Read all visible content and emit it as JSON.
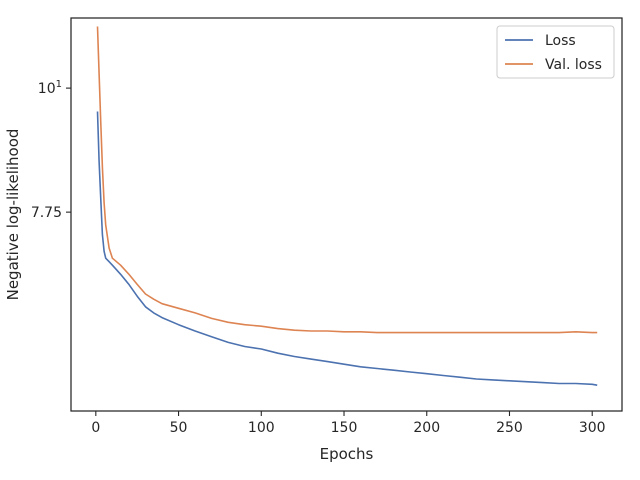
{
  "chart_data": {
    "type": "line",
    "title": "",
    "xlabel": "Epochs",
    "ylabel": "Negative log-likelihood",
    "yscale": "log",
    "xlim": [
      -15,
      318
    ],
    "ylim": [
      5.15,
      11.55
    ],
    "xticks": [
      0,
      50,
      100,
      150,
      200,
      250,
      300
    ],
    "xtick_labels": [
      "0",
      "50",
      "100",
      "150",
      "200",
      "250",
      "300"
    ],
    "yticks": [
      7.75,
      10
    ],
    "ytick_labels": [
      "7.75",
      "10"
    ],
    "ytick_superscript": [
      "",
      "1"
    ],
    "grid": false,
    "legend_position": "top-right",
    "series": [
      {
        "name": "Loss",
        "color": "#4c72b0",
        "x": [
          1,
          2,
          3,
          4,
          5,
          6,
          8,
          10,
          15,
          20,
          25,
          30,
          35,
          40,
          50,
          60,
          70,
          80,
          90,
          100,
          110,
          120,
          130,
          140,
          150,
          160,
          170,
          180,
          190,
          200,
          210,
          220,
          230,
          240,
          250,
          260,
          270,
          280,
          290,
          300,
          303
        ],
        "y": [
          9.53,
          8.6,
          7.95,
          7.4,
          7.15,
          7.05,
          7.0,
          6.95,
          6.82,
          6.68,
          6.52,
          6.38,
          6.3,
          6.24,
          6.15,
          6.07,
          6.0,
          5.93,
          5.88,
          5.85,
          5.8,
          5.76,
          5.73,
          5.7,
          5.67,
          5.64,
          5.62,
          5.6,
          5.58,
          5.56,
          5.54,
          5.52,
          5.5,
          5.49,
          5.48,
          5.47,
          5.46,
          5.45,
          5.45,
          5.44,
          5.43
        ]
      },
      {
        "name": "Val. loss",
        "color": "#dd8452",
        "x": [
          1,
          2,
          3,
          4,
          5,
          6,
          8,
          10,
          15,
          20,
          25,
          30,
          35,
          40,
          50,
          60,
          70,
          80,
          90,
          100,
          110,
          120,
          130,
          140,
          150,
          160,
          170,
          180,
          190,
          200,
          210,
          220,
          230,
          240,
          250,
          260,
          270,
          280,
          290,
          300,
          303
        ],
        "y": [
          11.35,
          10.3,
          9.3,
          8.5,
          7.9,
          7.55,
          7.2,
          7.05,
          6.95,
          6.82,
          6.68,
          6.55,
          6.48,
          6.42,
          6.36,
          6.3,
          6.23,
          6.18,
          6.15,
          6.13,
          6.1,
          6.08,
          6.07,
          6.07,
          6.06,
          6.06,
          6.05,
          6.05,
          6.05,
          6.05,
          6.05,
          6.05,
          6.05,
          6.05,
          6.05,
          6.05,
          6.05,
          6.05,
          6.06,
          6.05,
          6.05
        ]
      }
    ]
  }
}
